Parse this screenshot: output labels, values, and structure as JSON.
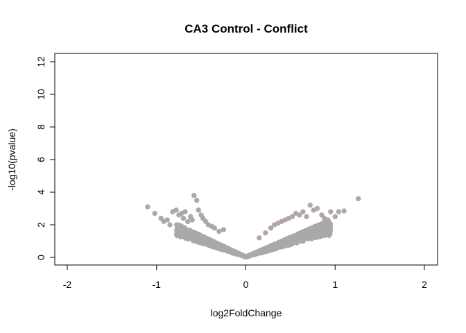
{
  "chart_data": {
    "type": "scatter",
    "title": "CA3 Control - Conflict",
    "xlabel": "log2FoldChange",
    "ylabel": "-log10(pvalue)",
    "xlim": [
      -2,
      2
    ],
    "ylim": [
      0,
      12
    ],
    "x_ticks": [
      "-2",
      "-1",
      "0",
      "1",
      "2"
    ],
    "y_ticks": [
      "0",
      "2",
      "4",
      "6",
      "8",
      "10",
      "12"
    ],
    "grid": false,
    "point_color": "#a9a9a9",
    "highlight_color": "#c7a0a4",
    "points": [
      {
        "x": -1.1,
        "y": 3.1
      },
      {
        "x": -1.02,
        "y": 2.7
      },
      {
        "x": -0.95,
        "y": 2.4
      },
      {
        "x": -0.92,
        "y": 2.2
      },
      {
        "x": -0.88,
        "y": 2.3
      },
      {
        "x": -0.85,
        "y": 2.0
      },
      {
        "x": -0.82,
        "y": 2.8
      },
      {
        "x": -0.78,
        "y": 2.9
      },
      {
        "x": -0.75,
        "y": 2.6
      },
      {
        "x": -0.72,
        "y": 2.7
      },
      {
        "x": -0.7,
        "y": 2.4
      },
      {
        "x": -0.68,
        "y": 2.8
      },
      {
        "x": -0.65,
        "y": 2.2
      },
      {
        "x": -0.62,
        "y": 2.5
      },
      {
        "x": -0.6,
        "y": 2.3
      },
      {
        "x": -0.58,
        "y": 3.8
      },
      {
        "x": -0.55,
        "y": 3.5
      },
      {
        "x": -0.53,
        "y": 2.9
      },
      {
        "x": -0.5,
        "y": 2.6
      },
      {
        "x": -0.48,
        "y": 2.4
      },
      {
        "x": -0.45,
        "y": 2.2
      },
      {
        "x": -0.42,
        "y": 2.0
      },
      {
        "x": -0.38,
        "y": 1.9
      },
      {
        "x": -0.35,
        "y": 1.8
      },
      {
        "x": -0.3,
        "y": 1.6
      },
      {
        "x": -0.25,
        "y": 1.7
      },
      {
        "x": 0.15,
        "y": 1.2
      },
      {
        "x": 0.22,
        "y": 1.5
      },
      {
        "x": 0.28,
        "y": 1.8
      },
      {
        "x": 0.32,
        "y": 2.0
      },
      {
        "x": 0.36,
        "y": 2.1
      },
      {
        "x": 0.4,
        "y": 2.2
      },
      {
        "x": 0.44,
        "y": 2.3
      },
      {
        "x": 0.48,
        "y": 2.4
      },
      {
        "x": 0.52,
        "y": 2.5
      },
      {
        "x": 0.56,
        "y": 2.7
      },
      {
        "x": 0.6,
        "y": 2.6
      },
      {
        "x": 0.64,
        "y": 2.8
      },
      {
        "x": 0.68,
        "y": 2.5
      },
      {
        "x": 0.72,
        "y": 3.2
      },
      {
        "x": 0.76,
        "y": 2.9
      },
      {
        "x": 0.8,
        "y": 3.0
      },
      {
        "x": 0.85,
        "y": 2.6
      },
      {
        "x": 0.88,
        "y": 2.4
      },
      {
        "x": 0.92,
        "y": 2.3
      },
      {
        "x": 0.95,
        "y": 2.8
      },
      {
        "x": 1.0,
        "y": 2.5
      },
      {
        "x": 1.04,
        "y": 2.8
      },
      {
        "x": 1.1,
        "y": 2.85
      },
      {
        "x": 1.26,
        "y": 3.6
      }
    ]
  }
}
